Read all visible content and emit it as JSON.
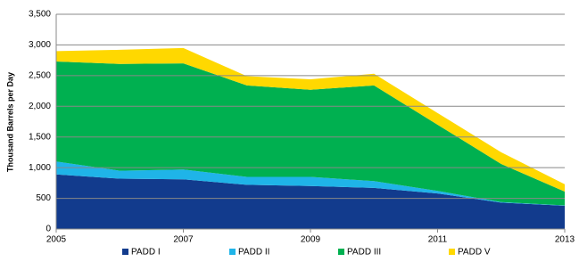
{
  "chart_data": {
    "type": "stacked_area",
    "y_label": "Thousand Barrels per Day",
    "x": [
      2005,
      2006,
      2007,
      2008,
      2009,
      2010,
      2011,
      2012,
      2013
    ],
    "xlim": [
      2005,
      2013
    ],
    "xticks": [
      2005,
      2007,
      2009,
      2011,
      2013
    ],
    "ylim": [
      0,
      3500
    ],
    "yticks": [
      0,
      500,
      {
        "value": 1000,
        "label": "1,000"
      },
      {
        "value": 1500,
        "label": "1,500"
      },
      {
        "value": 2000,
        "label": "2,000"
      },
      {
        "value": 2500,
        "label": "2,500"
      },
      {
        "value": 3000,
        "label": "3,000"
      },
      {
        "value": 3500,
        "label": "3,500"
      }
    ],
    "grid": true,
    "legend": "bottom",
    "series": [
      {
        "name": "PADD I",
        "color": "#123b8d",
        "values": [
          890,
          820,
          810,
          720,
          700,
          670,
          580,
          430,
          380
        ]
      },
      {
        "name": "PADD II",
        "color": "#1fb4e8",
        "values": [
          210,
          130,
          160,
          130,
          150,
          110,
          40,
          10,
          5
        ]
      },
      {
        "name": "PADD III",
        "color": "#00b050",
        "values": [
          1630,
          1740,
          1730,
          1490,
          1420,
          1560,
          1080,
          620,
          225
        ]
      },
      {
        "name": "PADD V",
        "color": "#ffd800",
        "values": [
          170,
          230,
          250,
          150,
          170,
          190,
          190,
          190,
          120
        ]
      }
    ]
  }
}
